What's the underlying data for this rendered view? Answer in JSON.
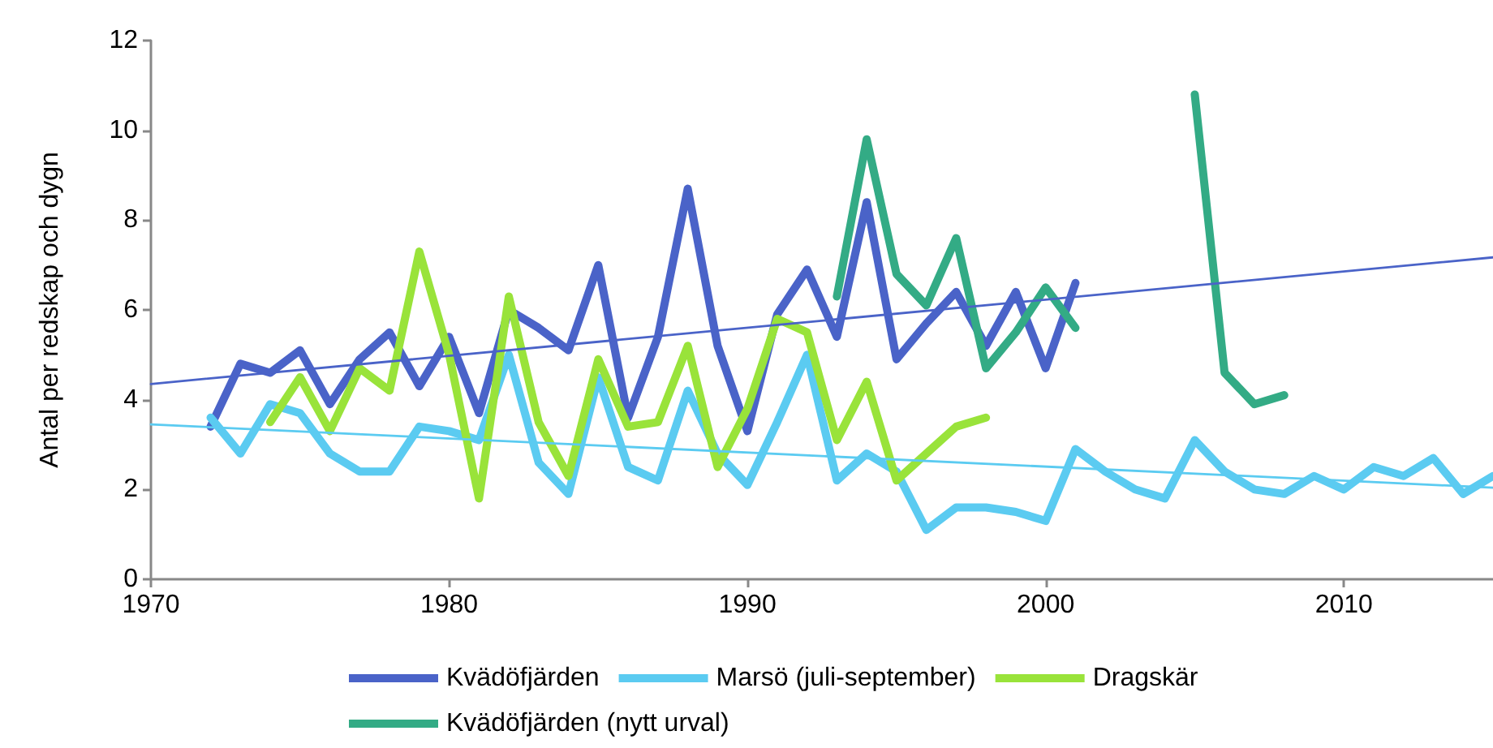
{
  "chart_data": {
    "type": "line",
    "ylabel": "Antal per redskap och dygn",
    "xlim": [
      1970,
      2015
    ],
    "xticks": [
      1970,
      1980,
      1990,
      2000,
      2010
    ],
    "ylim": [
      0,
      12
    ],
    "yticks": [
      0,
      2,
      4,
      6,
      8,
      10,
      12
    ],
    "grid": false,
    "legend": "bottom",
    "marker": "none",
    "line_style": "solid",
    "series": [
      {
        "name": "Kvädöfjärden",
        "color": "#4a63c8",
        "x": [
          1972,
          1973,
          1974,
          1975,
          1976,
          1977,
          1978,
          1979,
          1980,
          1981,
          1982,
          1983,
          1984,
          1985,
          1986,
          1987,
          1988,
          1989,
          1990,
          1991,
          1992,
          1993,
          1994,
          1995,
          1996,
          1997,
          1998,
          1999,
          2000,
          2001
        ],
        "values": [
          3.4,
          4.8,
          4.6,
          5.1,
          3.9,
          4.9,
          5.5,
          4.3,
          5.4,
          3.7,
          6.0,
          5.6,
          5.1,
          7.0,
          3.6,
          5.4,
          8.7,
          5.2,
          3.3,
          5.9,
          6.9,
          5.4,
          8.4,
          4.9,
          5.7,
          6.4,
          5.2,
          6.4,
          4.7,
          6.6
        ]
      },
      {
        "name": "Marsö (juli-september)",
        "color": "#5bcbf1",
        "x": [
          1972,
          1973,
          1974,
          1975,
          1976,
          1977,
          1978,
          1979,
          1980,
          1981,
          1982,
          1983,
          1984,
          1985,
          1986,
          1987,
          1988,
          1989,
          1990,
          1991,
          1992,
          1993,
          1994,
          1995,
          1996,
          1997,
          1998,
          1999,
          2000,
          2001,
          2002,
          2003,
          2004,
          2005,
          2006,
          2007,
          2008,
          2009,
          2010,
          2011,
          2012,
          2013,
          2014,
          2015
        ],
        "values": [
          3.6,
          2.8,
          3.9,
          3.7,
          2.8,
          2.4,
          2.4,
          3.4,
          3.3,
          3.1,
          5.0,
          2.6,
          1.9,
          4.5,
          2.5,
          2.2,
          4.2,
          2.8,
          2.1,
          3.5,
          5.0,
          2.2,
          2.8,
          2.4,
          1.1,
          1.6,
          1.6,
          1.5,
          1.3,
          2.9,
          2.4,
          2.0,
          1.8,
          3.1,
          2.4,
          2.0,
          1.9,
          2.3,
          2.0,
          2.5,
          2.3,
          2.7,
          1.9,
          2.3
        ]
      },
      {
        "name": "Dragskär",
        "color": "#99e33a",
        "x": [
          1974,
          1975,
          1976,
          1977,
          1978,
          1979,
          1980,
          1981,
          1982,
          1983,
          1984,
          1985,
          1986,
          1987,
          1988,
          1989,
          1990,
          1991,
          1992,
          1993,
          1994,
          1995,
          1996,
          1997,
          1998
        ],
        "values": [
          3.5,
          4.5,
          3.3,
          4.7,
          4.2,
          7.3,
          5.0,
          1.8,
          6.3,
          3.5,
          2.3,
          4.9,
          3.4,
          3.5,
          5.2,
          2.5,
          3.8,
          5.8,
          5.5,
          3.1,
          4.4,
          2.2,
          2.8,
          3.4,
          3.6
        ]
      },
      {
        "name": "Kvädöfjärden (nytt urval)",
        "color": "#33ab85",
        "x": [
          1993,
          1994,
          1995,
          1996,
          1997,
          1998,
          1999,
          2000,
          2001,
          2002,
          2003,
          2004,
          2005,
          2006,
          2007,
          2008
        ],
        "values": [
          6.3,
          9.8,
          6.8,
          6.1,
          7.6,
          4.7,
          5.5,
          6.5,
          5.6,
          null,
          null,
          null,
          10.8,
          4.6,
          3.9,
          4.1
        ]
      },
      {
        "type": "line",
        "color": "#4a63c8",
        "x": [
          1970,
          2015
        ],
        "values": [
          4.35,
          7.17
        ]
      },
      {
        "type": "line",
        "color": "#5bcbf1",
        "x": [
          1970,
          2015
        ],
        "values": [
          3.45,
          2.04
        ]
      }
    ]
  }
}
